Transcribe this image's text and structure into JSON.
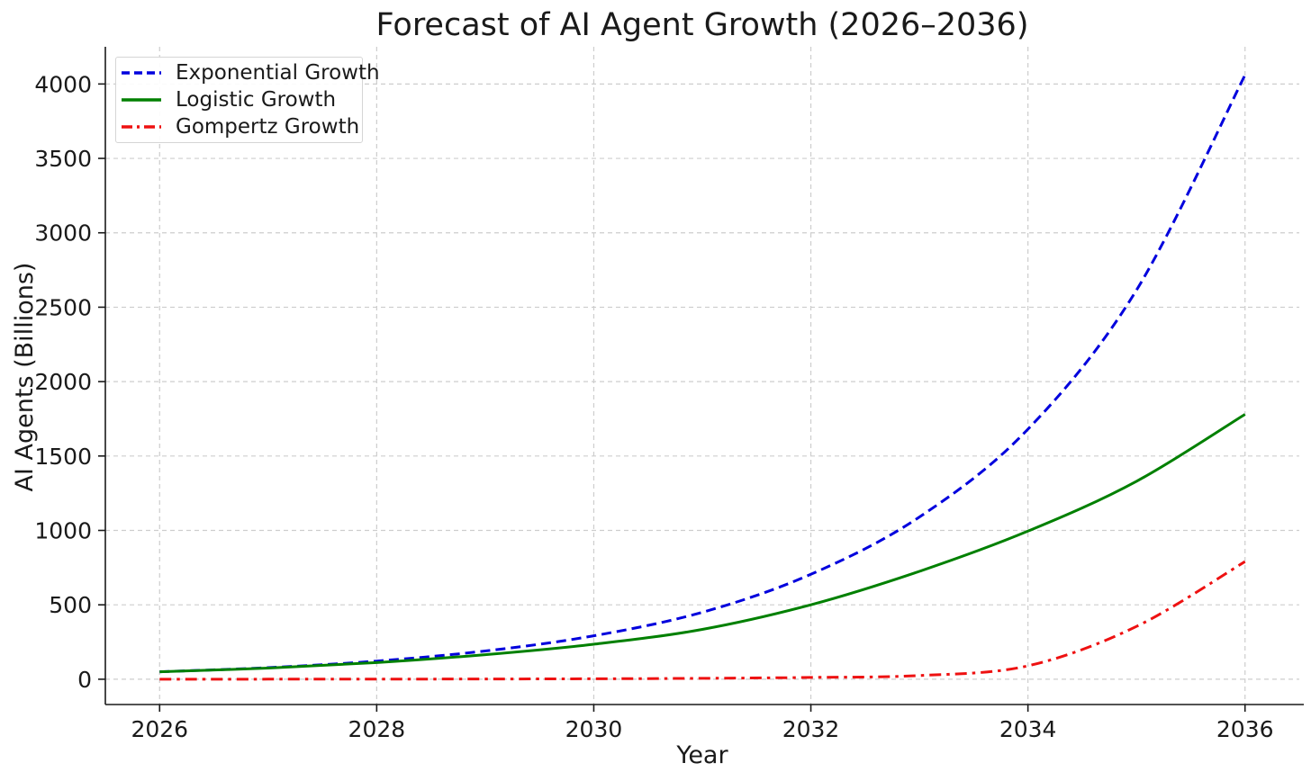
{
  "chart_data": {
    "type": "line",
    "title": "Forecast of AI Agent Growth (2026–2036)",
    "xlabel": "Year",
    "ylabel": "AI Agents (Billions)",
    "x": [
      2026,
      2027,
      2028,
      2029,
      2030,
      2031,
      2032,
      2033,
      2034,
      2035,
      2036
    ],
    "series": [
      {
        "name": "Exponential Growth",
        "color": "#0000dd",
        "style": "dashed",
        "values": [
          50,
          78,
          122,
          190,
          292,
          450,
          705,
          1090,
          1680,
          2615,
          4060
        ]
      },
      {
        "name": "Logistic Growth",
        "color": "#008000",
        "style": "solid",
        "values": [
          50,
          75,
          112,
          165,
          235,
          335,
          500,
          725,
          995,
          1330,
          1780
        ]
      },
      {
        "name": "Gompertz Growth",
        "color": "#ee1111",
        "style": "dashdot",
        "values": [
          0.1,
          0.3,
          0.8,
          1.5,
          3,
          6,
          12,
          25,
          90,
          355,
          790
        ]
      }
    ],
    "xticks": [
      2026,
      2028,
      2030,
      2032,
      2034,
      2036
    ],
    "yticks": [
      0,
      500,
      1000,
      1500,
      2000,
      2500,
      3000,
      3500,
      4000
    ],
    "xlim": [
      2025.5,
      2036.5
    ],
    "ylim": [
      -170,
      4250
    ],
    "grid": true,
    "legend_position": "upper-left"
  }
}
